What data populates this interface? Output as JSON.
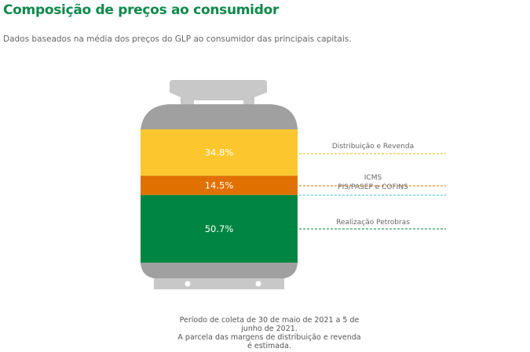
{
  "header": {
    "title": "Composição de preços ao consumidor",
    "subtitle": "Dados baseados na média dos preços do GLP ao consumidor das principais capitais."
  },
  "chart_data": {
    "type": "bar",
    "title": "Composição de preços ao consumidor",
    "stacked": true,
    "series": [
      {
        "name": "Distribuição e Revenda",
        "value": 34.8,
        "label": "34.8%",
        "color": "#fcc72e",
        "line_color": "#f4b400"
      },
      {
        "name": "ICMS",
        "value": 14.5,
        "label": "14.5%",
        "color": "#e07000",
        "line_color": "#e07000"
      },
      {
        "name": "PIS/PASEP e COFINS",
        "value": 0,
        "label": "",
        "color": "#3cc6c6",
        "line_color": "#3cc6c6"
      },
      {
        "name": "Realização Petrobras",
        "value": 50.7,
        "label": "50.7%",
        "color": "#008542",
        "line_color": "#008542"
      }
    ]
  },
  "footer": {
    "lines": [
      "Período de coleta de 30 de maio de 2021 a 5 de junho de 2021.",
      "A parcela das margens de distribuição e revenda é estimada."
    ]
  }
}
